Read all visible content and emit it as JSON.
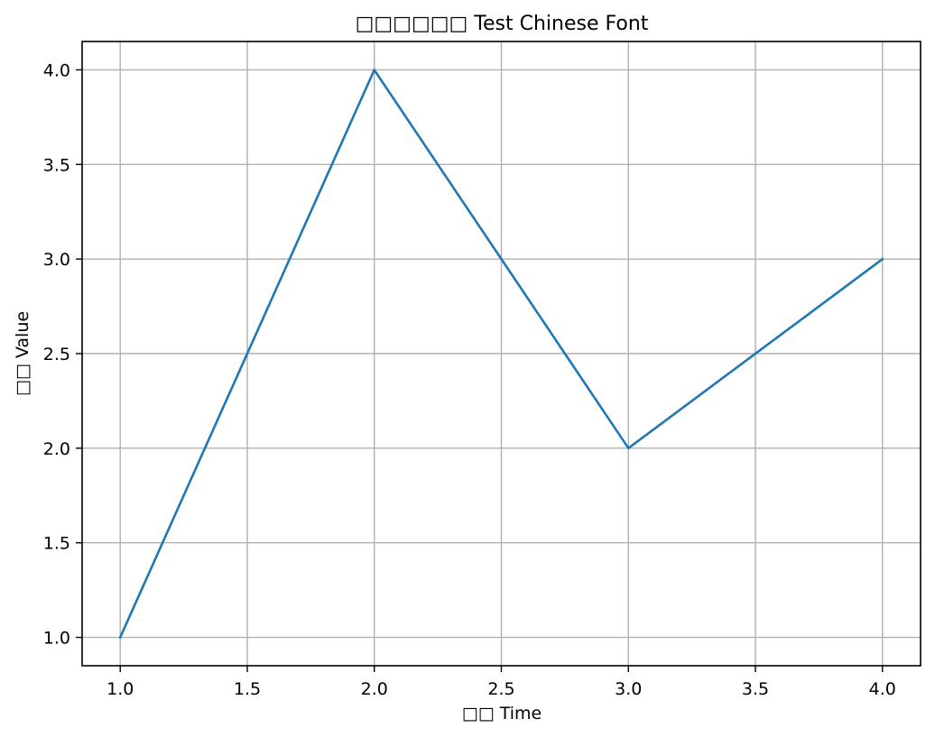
{
  "chart_data": {
    "type": "line",
    "title": "□□□□□□ Test Chinese Font",
    "xlabel": "□□ Time",
    "ylabel": "□□ Value",
    "x": [
      1.0,
      2.0,
      3.0,
      4.0
    ],
    "series": [
      {
        "values": [
          1.0,
          4.0,
          2.0,
          3.0
        ],
        "color": "#1f77b4"
      }
    ],
    "xlim": [
      0.85,
      4.15
    ],
    "ylim": [
      0.85,
      4.15
    ],
    "xticks": [
      "1.0",
      "1.5",
      "2.0",
      "2.5",
      "3.0",
      "3.5",
      "4.0"
    ],
    "yticks": [
      "1.0",
      "1.5",
      "2.0",
      "2.5",
      "3.0",
      "3.5",
      "4.0"
    ],
    "grid": true,
    "grid_color": "#b0b0b0"
  }
}
